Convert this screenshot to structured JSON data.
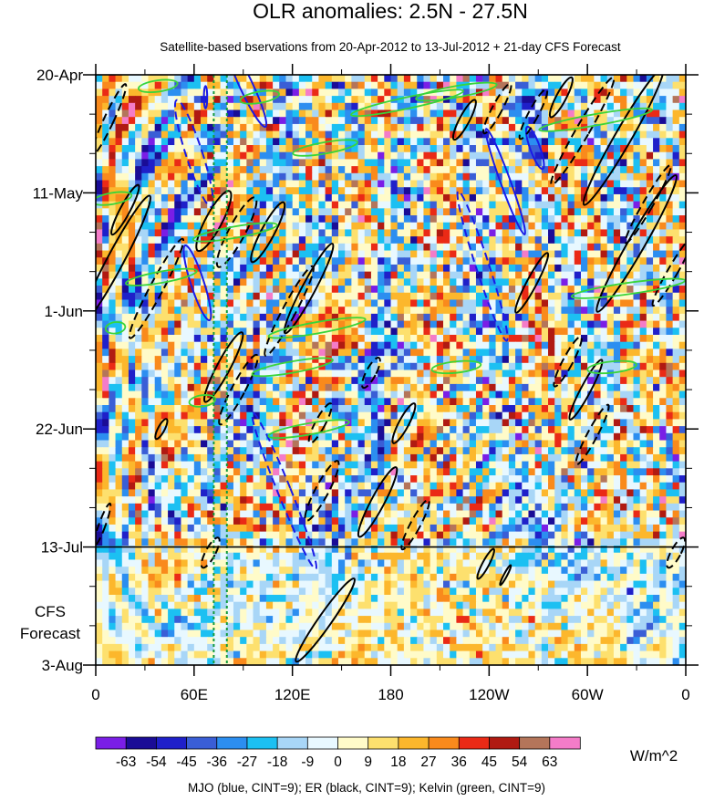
{
  "chart_data": {
    "type": "heatmap",
    "title": "OLR anomalies: 2.5N - 27.5N",
    "subtitle": "Satellite-based bservations from 20-Apr-2012 to 13-Jul-2012 + 21-day CFS Forecast",
    "x_ticks": [
      "0",
      "60E",
      "120E",
      "180",
      "120W",
      "60W",
      "0"
    ],
    "x_tick_lon": [
      0,
      60,
      120,
      180,
      240,
      300,
      360
    ],
    "xlim": [
      0,
      360
    ],
    "y_ticks": [
      "20-Apr",
      "11-May",
      "1-Jun",
      "22-Jun",
      "13-Jul",
      "3-Aug"
    ],
    "y_tick_day": [
      0,
      21,
      42,
      63,
      84,
      105
    ],
    "ylim": [
      0,
      105
    ],
    "y_minor_step_days": 7,
    "forecast_start_label": "13-Jul",
    "forecast_start_day": 84,
    "forecast_label": [
      "CFS",
      "Forecast"
    ],
    "reference_lines_lon": [
      72,
      80
    ],
    "reference_line_color": "#149a3c",
    "colorbar": {
      "levels": [
        -63,
        -54,
        -45,
        -36,
        -27,
        -18,
        -9,
        0,
        9,
        18,
        27,
        36,
        45,
        54,
        63
      ],
      "colors": [
        "#7a1ee6",
        "#1a0c96",
        "#1f20c9",
        "#3a5ed6",
        "#2c8ef0",
        "#1cc0f2",
        "#a8d6f7",
        "#e8f8ff",
        "#fffbc9",
        "#fde06e",
        "#fcb72c",
        "#f98a1c",
        "#ea2a16",
        "#b01a12",
        "#b4755a",
        "#f47cc8"
      ],
      "unit": "W/m^2"
    },
    "footer": "MJO (blue, CINT=9); ER (black, CINT=9); Kelvin (green, CINT=9)",
    "contours": {
      "MJO": {
        "color": "#1a1ae6",
        "cint": 9,
        "ellipses": [
          {
            "lon": 92,
            "day": 2,
            "rx": 4,
            "ry": 8,
            "angle": -25,
            "neg": false
          },
          {
            "lon": 60,
            "day": 14,
            "rx": 5,
            "ry": 10,
            "angle": -18,
            "neg": true
          },
          {
            "lon": 62,
            "day": 37,
            "rx": 4,
            "ry": 7,
            "angle": -18,
            "neg": false
          },
          {
            "lon": 115,
            "day": 74,
            "rx": 4,
            "ry": 15,
            "angle": -22,
            "neg": true
          },
          {
            "lon": 250,
            "day": 19,
            "rx": 3,
            "ry": 10,
            "angle": -20,
            "neg": false
          },
          {
            "lon": 236,
            "day": 34,
            "rx": 4,
            "ry": 14,
            "angle": -18,
            "neg": true
          },
          {
            "lon": 268,
            "day": 13,
            "rx": 3,
            "ry": 4,
            "angle": -20,
            "neg": false
          },
          {
            "lon": 67,
            "day": 4,
            "rx": 1,
            "ry": 2,
            "angle": 0,
            "neg": false
          }
        ]
      },
      "ER": {
        "color": "#000000",
        "cint": 9,
        "ellipses": [
          {
            "lon": 8,
            "day": 8,
            "rx": 3,
            "ry": 7,
            "angle": 25,
            "neg": true
          },
          {
            "lon": 12,
            "day": 33,
            "rx": 5,
            "ry": 13,
            "angle": 28,
            "neg": false
          },
          {
            "lon": 18,
            "day": 24,
            "rx": 3,
            "ry": 5,
            "angle": 28,
            "neg": false
          },
          {
            "lon": 37,
            "day": 38,
            "rx": 4,
            "ry": 10,
            "angle": 28,
            "neg": true
          },
          {
            "lon": 72,
            "day": 26,
            "rx": 5,
            "ry": 6,
            "angle": 28,
            "neg": false
          },
          {
            "lon": 86,
            "day": 28,
            "rx": 5,
            "ry": 7,
            "angle": 28,
            "neg": true
          },
          {
            "lon": 105,
            "day": 28,
            "rx": 4,
            "ry": 6,
            "angle": 28,
            "neg": false
          },
          {
            "lon": 130,
            "day": 38,
            "rx": 4,
            "ry": 9,
            "angle": 28,
            "neg": false
          },
          {
            "lon": 118,
            "day": 42,
            "rx": 4,
            "ry": 9,
            "angle": 28,
            "neg": true
          },
          {
            "lon": 78,
            "day": 52,
            "rx": 4,
            "ry": 7,
            "angle": 28,
            "neg": false
          },
          {
            "lon": 87,
            "day": 56,
            "rx": 4,
            "ry": 7,
            "angle": 28,
            "neg": true
          },
          {
            "lon": 40,
            "day": 63,
            "rx": 2,
            "ry": 2,
            "angle": 28,
            "neg": false
          },
          {
            "lon": 137,
            "day": 62,
            "rx": 3,
            "ry": 4,
            "angle": 28,
            "neg": true
          },
          {
            "lon": 188,
            "day": 62,
            "rx": 3,
            "ry": 4,
            "angle": 28,
            "neg": false
          },
          {
            "lon": 168,
            "day": 53,
            "rx": 3,
            "ry": 3,
            "angle": 28,
            "neg": true
          },
          {
            "lon": 138,
            "day": 74,
            "rx": 4,
            "ry": 6,
            "angle": 28,
            "neg": true
          },
          {
            "lon": 172,
            "day": 76,
            "rx": 4,
            "ry": 7,
            "angle": 28,
            "neg": false
          },
          {
            "lon": 195,
            "day": 80,
            "rx": 3,
            "ry": 5,
            "angle": 28,
            "neg": true
          },
          {
            "lon": 225,
            "day": 8,
            "rx": 3,
            "ry": 4,
            "angle": 28,
            "neg": false
          },
          {
            "lon": 245,
            "day": 6,
            "rx": 3,
            "ry": 5,
            "angle": 28,
            "neg": true
          },
          {
            "lon": 267,
            "day": 7,
            "rx": 3,
            "ry": 5,
            "angle": 28,
            "neg": true
          },
          {
            "lon": 284,
            "day": 4,
            "rx": 3,
            "ry": 4,
            "angle": 28,
            "neg": false
          },
          {
            "lon": 297,
            "day": 10,
            "rx": 4,
            "ry": 11,
            "angle": 30,
            "neg": true
          },
          {
            "lon": 322,
            "day": 11,
            "rx": 5,
            "ry": 14,
            "angle": 30,
            "neg": false
          },
          {
            "lon": 337,
            "day": 23,
            "rx": 3,
            "ry": 8,
            "angle": 30,
            "neg": true
          },
          {
            "lon": 330,
            "day": 30,
            "rx": 5,
            "ry": 14,
            "angle": 30,
            "neg": false
          },
          {
            "lon": 352,
            "day": 35,
            "rx": 3,
            "ry": 7,
            "angle": 30,
            "neg": true
          },
          {
            "lon": 266,
            "day": 37,
            "rx": 3,
            "ry": 6,
            "angle": 28,
            "neg": false
          },
          {
            "lon": 288,
            "day": 51,
            "rx": 3,
            "ry": 5,
            "angle": 28,
            "neg": true
          },
          {
            "lon": 299,
            "day": 56,
            "rx": 3,
            "ry": 6,
            "angle": 28,
            "neg": false
          },
          {
            "lon": 303,
            "day": 64,
            "rx": 3,
            "ry": 6,
            "angle": 28,
            "neg": true
          },
          {
            "lon": 238,
            "day": 87,
            "rx": 2,
            "ry": 3,
            "angle": 28,
            "neg": false
          },
          {
            "lon": 250,
            "day": 89,
            "rx": 1,
            "ry": 2,
            "angle": 28,
            "neg": false
          },
          {
            "lon": 354,
            "day": 85,
            "rx": 3,
            "ry": 3,
            "angle": 28,
            "neg": true
          },
          {
            "lon": 70,
            "day": 85,
            "rx": 3,
            "ry": 3,
            "angle": 28,
            "neg": true
          },
          {
            "lon": 140,
            "day": 97,
            "rx": 4,
            "ry": 9,
            "angle": 35,
            "neg": false
          },
          {
            "lon": 4,
            "day": 80,
            "rx": 2,
            "ry": 4,
            "angle": 20,
            "neg": true
          }
        ]
      },
      "Kelvin": {
        "color": "#3ad43a",
        "cint": 9,
        "ellipses": [
          {
            "lon": 38,
            "day": 2,
            "rx": 12,
            "ry": 1,
            "angle": -8,
            "neg": false
          },
          {
            "lon": 100,
            "day": 4,
            "rx": 12,
            "ry": 1,
            "angle": -10,
            "neg": false
          },
          {
            "lon": 140,
            "day": 13,
            "rx": 20,
            "ry": 1,
            "angle": -10,
            "neg": false
          },
          {
            "lon": 190,
            "day": 5,
            "rx": 35,
            "ry": 1,
            "angle": -12,
            "neg": false
          },
          {
            "lon": 220,
            "day": 3,
            "rx": 25,
            "ry": 1,
            "angle": -10,
            "neg": false
          },
          {
            "lon": 305,
            "day": 8,
            "rx": 35,
            "ry": 1,
            "angle": -10,
            "neg": false
          },
          {
            "lon": 10,
            "day": 22,
            "rx": 12,
            "ry": 1,
            "angle": -10,
            "neg": false
          },
          {
            "lon": 85,
            "day": 28,
            "rx": 26,
            "ry": 1,
            "angle": -10,
            "neg": false
          },
          {
            "lon": 40,
            "day": 36,
            "rx": 22,
            "ry": 1,
            "angle": -10,
            "neg": false
          },
          {
            "lon": 135,
            "day": 45,
            "rx": 30,
            "ry": 1,
            "angle": -10,
            "neg": false
          },
          {
            "lon": 120,
            "day": 52,
            "rx": 25,
            "ry": 1,
            "angle": -10,
            "neg": false
          },
          {
            "lon": 130,
            "day": 63,
            "rx": 25,
            "ry": 1,
            "angle": -10,
            "neg": false
          },
          {
            "lon": 325,
            "day": 38,
            "rx": 35,
            "ry": 1,
            "angle": -8,
            "neg": false
          },
          {
            "lon": 220,
            "day": 52,
            "rx": 15,
            "ry": 1,
            "angle": -6,
            "neg": false
          },
          {
            "lon": 315,
            "day": 52,
            "rx": 15,
            "ry": 1,
            "angle": -6,
            "neg": false
          },
          {
            "lon": 12,
            "day": 45,
            "rx": 6,
            "ry": 1,
            "angle": -8,
            "neg": false
          },
          {
            "lon": 65,
            "day": 58,
            "rx": 8,
            "ry": 1,
            "angle": -8,
            "neg": false
          }
        ]
      }
    }
  }
}
